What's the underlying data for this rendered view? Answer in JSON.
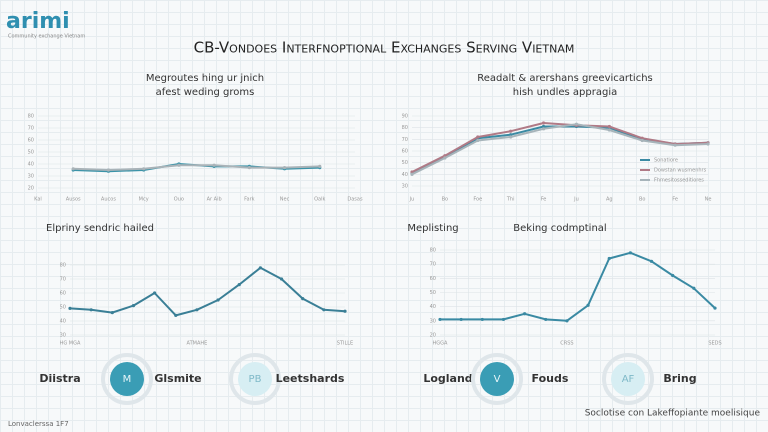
{
  "header": {
    "logo": "arimi",
    "tagline": "Community exchange Vietnam",
    "title": "CB-Vondoes Interfnoptional Exchanges Serving Vietnam"
  },
  "chart_data": [
    {
      "type": "line",
      "title": "Megroutes hing ur jnich",
      "subtitle": "afest weding groms",
      "categories": [
        "Kal",
        "Ausos",
        "Aucos",
        "Mcy",
        "Ouo",
        "Ar Aib",
        "Fark",
        "Nec",
        "Oalk",
        "Dasas"
      ],
      "series": [
        {
          "color": "#3a93a8",
          "values": [
            null,
            35,
            34,
            35,
            40,
            38,
            38,
            36,
            37,
            null
          ]
        },
        {
          "color": "#a9b3b8",
          "values": [
            null,
            36,
            35,
            36,
            39,
            39,
            37,
            37,
            38,
            null
          ]
        }
      ],
      "ylim": [
        20,
        80
      ],
      "yticks": [
        20,
        30,
        40,
        50,
        60,
        70,
        80
      ],
      "grid": true
    },
    {
      "type": "line",
      "title": "Readalt & arershans greevicartichs",
      "subtitle": "hish undles appragia",
      "categories": [
        "Ju",
        "Bo",
        "Foe",
        "Thi",
        "Fe",
        "Ju",
        "Ag",
        "Bo",
        "Fe",
        "Ne"
      ],
      "series": [
        {
          "name": "Sonatiore",
          "color": "#3a8aa3",
          "values": [
            41,
            55,
            71,
            74,
            81,
            81,
            80,
            70,
            66,
            67
          ]
        },
        {
          "name": "Dowstan wusmenhrs",
          "color": "#b07a86",
          "values": [
            42,
            56,
            72,
            77,
            84,
            82,
            81,
            71,
            66,
            67
          ]
        },
        {
          "name": "Fhmesitosseditiores",
          "color": "#a7b4ba",
          "values": [
            40,
            54,
            69,
            72,
            79,
            83,
            78,
            69,
            65,
            66
          ]
        }
      ],
      "ylim": [
        30,
        90
      ],
      "yticks": [
        30,
        40,
        50,
        60,
        70,
        80,
        90
      ],
      "grid": true
    },
    {
      "type": "line",
      "title": "Elpriny sendric hailed",
      "categories": [
        "HG MGA",
        null,
        null,
        null,
        null,
        null,
        "ATMAHE",
        null,
        null,
        null,
        null,
        null,
        null,
        "STILLE"
      ],
      "series": [
        {
          "color": "#3a7f96",
          "values": [
            49,
            48,
            46,
            51,
            60,
            44,
            48,
            55,
            66,
            78,
            70,
            56,
            48,
            47
          ]
        }
      ],
      "ylim": [
        30,
        80
      ],
      "yticks": [
        30,
        40,
        50,
        60,
        70,
        80
      ],
      "grid": true
    },
    {
      "type": "line",
      "title": "Beking codmptinal",
      "subtitle": "Meplisting",
      "categories": [
        "HGGA",
        null,
        null,
        null,
        null,
        null,
        "CRSS",
        null,
        null,
        null,
        null,
        null,
        null,
        "SEDS"
      ],
      "series": [
        {
          "color": "#3a8aa3",
          "values": [
            31,
            31,
            31,
            31,
            35,
            31,
            30,
            41,
            74,
            78,
            72,
            62,
            53,
            39
          ]
        }
      ],
      "ylim": [
        20,
        80
      ],
      "yticks": [
        20,
        30,
        40,
        50,
        60,
        70,
        80
      ],
      "grid": true
    }
  ],
  "badges": [
    {
      "left": "Diistra",
      "icon": "M",
      "right": "Glsmite"
    },
    {
      "icon": "PB",
      "right": "Leetshards"
    },
    {
      "left": "Logland",
      "icon": "V",
      "right": "Fouds"
    },
    {
      "icon": "AF",
      "right": "Bring"
    }
  ],
  "footer": {
    "left": "Lonvaclerssa 1F7",
    "right": "Soclotise con Lakeffopiante moelisique"
  }
}
